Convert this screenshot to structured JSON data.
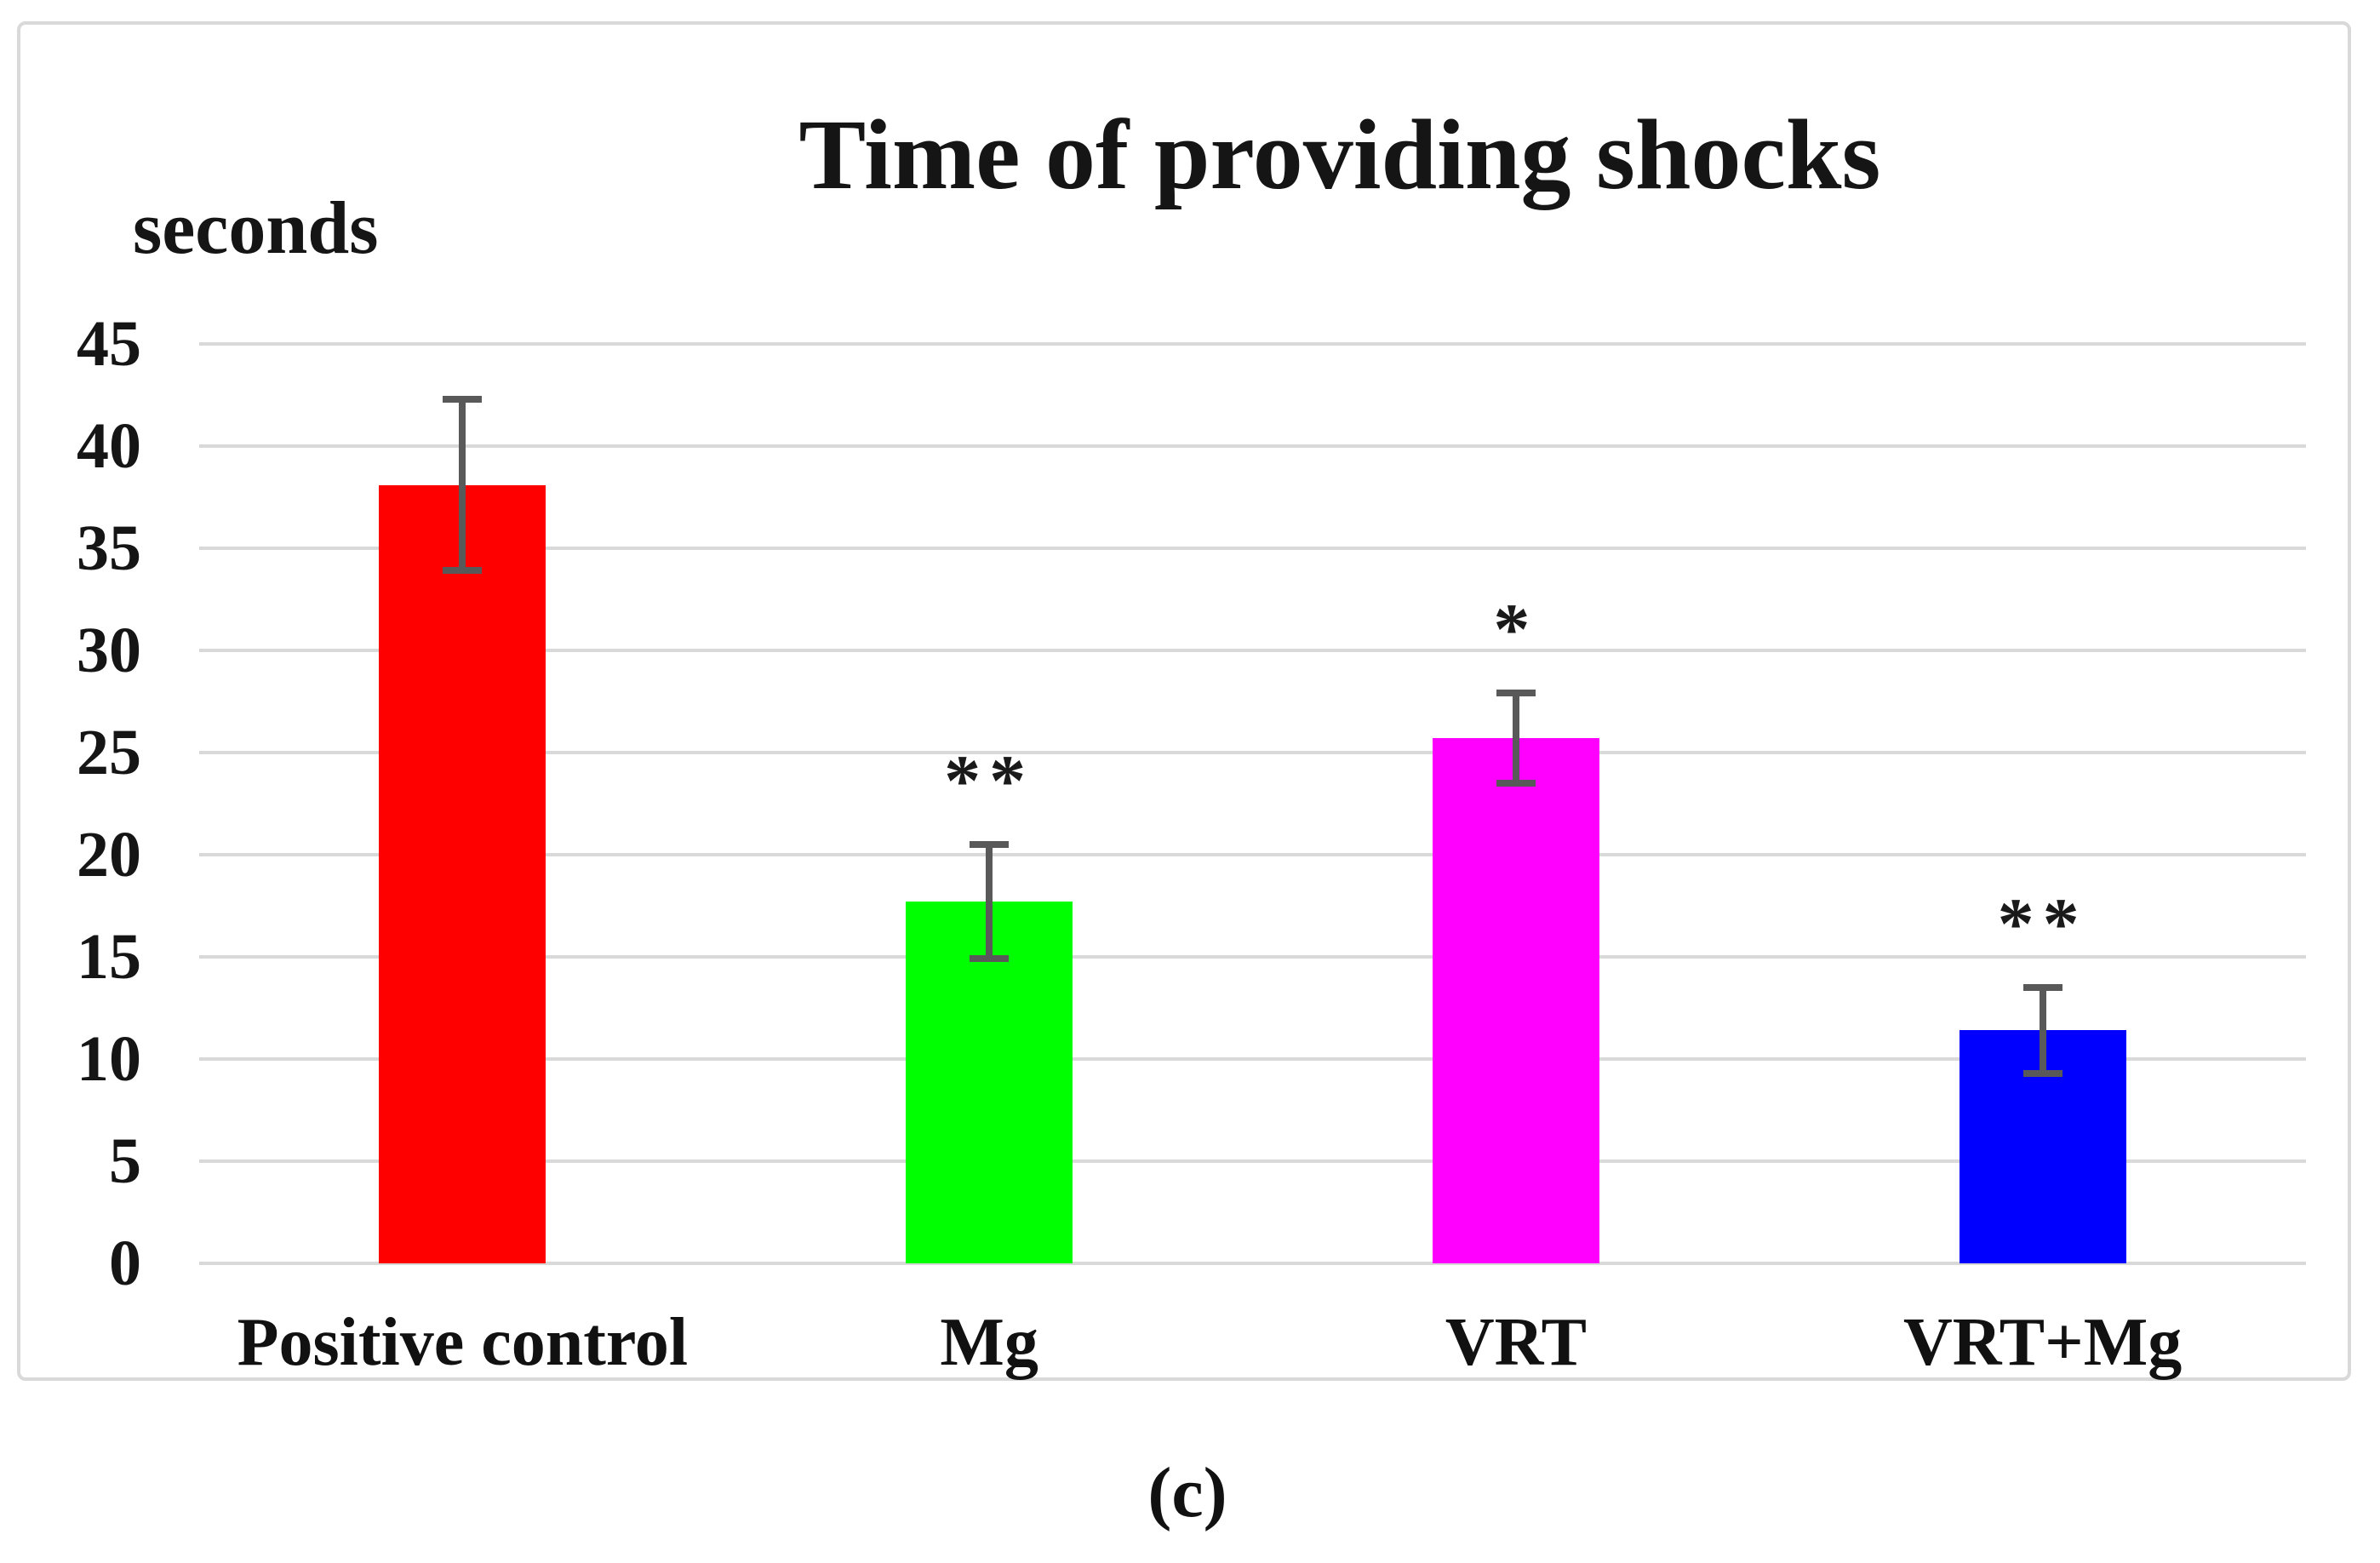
{
  "figure": {
    "caption": "(c)"
  },
  "chart_data": {
    "type": "bar",
    "title": "Time of providing shocks",
    "ylabel": "seconds",
    "xlabel": "",
    "categories": [
      "Positive control",
      "Mg",
      "VRT",
      "VRT+Mg"
    ],
    "values": [
      38.1,
      17.7,
      25.7,
      11.4
    ],
    "error_bars": [
      4.2,
      2.8,
      2.2,
      2.1
    ],
    "significance_labels": [
      "",
      "**",
      "*",
      "**"
    ],
    "bar_colors": [
      "#ff0000",
      "#00ff00",
      "#ff00ff",
      "#0000ff"
    ],
    "error_bar_color": "#595959",
    "gridline_color": "#d9d9d9",
    "border_color": "#d9d9d9",
    "ylim": [
      0,
      45
    ],
    "ytick_interval": 5,
    "yticks": [
      "45",
      "40",
      "35",
      "30",
      "25",
      "20",
      "15",
      "10",
      "5",
      "0"
    ],
    "grid": true,
    "legend": false
  }
}
